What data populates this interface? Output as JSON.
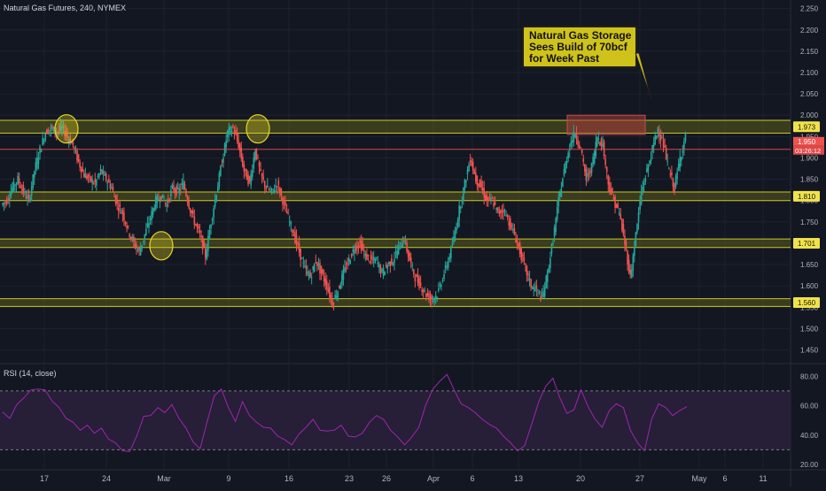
{
  "header": {
    "title": "Natural Gas Futures, 240, NYMEX"
  },
  "annotation": {
    "lines": [
      "Natural Gas Storage",
      "Sees Build of 70bcf",
      "for Week Past"
    ]
  },
  "colors": {
    "background": "#131722",
    "up": "#26a69a",
    "down": "#ef5350",
    "zone_fill": "#6b6b1a",
    "zone_line": "#c9c82a",
    "rsi_line": "#9c27b0",
    "rsi_band": "#2a1f3a",
    "last_price": "#ef5350"
  },
  "chart_data": [
    {
      "type": "candlestick",
      "title": "Natural Gas Futures, 240, NYMEX",
      "ylim": [
        1.42,
        2.27
      ],
      "y_ticks": [
        "2.250",
        "2.200",
        "2.150",
        "2.100",
        "2.050",
        "2.000",
        "1.950",
        "1.900",
        "1.850",
        "1.800",
        "1.750",
        "1.700",
        "1.650",
        "1.600",
        "1.550",
        "1.500",
        "1.450"
      ],
      "x_ticks": [
        "17",
        "24",
        "Mar",
        "9",
        "16",
        "23",
        "26",
        "Apr",
        "6",
        "13",
        "20",
        "27",
        "May",
        "6",
        "11"
      ],
      "grid": true,
      "ohlc_trend": [
        1.79,
        1.8,
        1.83,
        1.85,
        1.82,
        1.8,
        1.87,
        1.92,
        1.96,
        1.97,
        1.96,
        1.97,
        1.95,
        1.93,
        1.89,
        1.86,
        1.85,
        1.84,
        1.87,
        1.85,
        1.83,
        1.79,
        1.77,
        1.73,
        1.7,
        1.68,
        1.72,
        1.76,
        1.8,
        1.81,
        1.79,
        1.83,
        1.82,
        1.84,
        1.79,
        1.75,
        1.72,
        1.67,
        1.75,
        1.82,
        1.89,
        1.96,
        1.97,
        1.93,
        1.87,
        1.84,
        1.92,
        1.86,
        1.83,
        1.82,
        1.84,
        1.8,
        1.76,
        1.72,
        1.68,
        1.64,
        1.62,
        1.66,
        1.63,
        1.6,
        1.56,
        1.59,
        1.63,
        1.66,
        1.69,
        1.7,
        1.67,
        1.66,
        1.66,
        1.63,
        1.65,
        1.66,
        1.69,
        1.71,
        1.66,
        1.62,
        1.6,
        1.58,
        1.57,
        1.58,
        1.62,
        1.66,
        1.71,
        1.78,
        1.84,
        1.9,
        1.85,
        1.83,
        1.8,
        1.8,
        1.77,
        1.78,
        1.75,
        1.72,
        1.68,
        1.64,
        1.6,
        1.59,
        1.57,
        1.63,
        1.71,
        1.8,
        1.87,
        1.93,
        1.96,
        1.92,
        1.85,
        1.88,
        1.95,
        1.93,
        1.84,
        1.8,
        1.77,
        1.7,
        1.62,
        1.72,
        1.82,
        1.87,
        1.92,
        1.97,
        1.93,
        1.87,
        1.83,
        1.9,
        1.95
      ],
      "last_price": "1.947",
      "price_label": "1.950",
      "countdown": "03:26:12",
      "zones": [
        {
          "low": 1.958,
          "high": 1.988,
          "label": "1.973"
        },
        {
          "low": 1.8,
          "high": 1.82,
          "label": "1.810"
        },
        {
          "low": 1.69,
          "high": 1.71,
          "label": "1.701"
        },
        {
          "low": 1.552,
          "high": 1.57,
          "label": "1.560"
        }
      ],
      "marked_highs": [
        "17-19 Feb high",
        "10-11 Mar high"
      ],
      "marked_lows": [
        "27-28 Feb low"
      ],
      "resistance_box": {
        "low": 1.955,
        "high": 2.0
      }
    },
    {
      "type": "line",
      "title": "RSI (14, close)",
      "ylim": [
        17,
        88
      ],
      "y_ticks": [
        "80.00",
        "60.00",
        "40.00",
        "20.00"
      ],
      "bands": [
        30,
        70
      ],
      "series": [
        {
          "name": "RSI (14, close)",
          "values": [
            55,
            52,
            60,
            66,
            70,
            72,
            70,
            64,
            58,
            52,
            48,
            44,
            46,
            42,
            44,
            38,
            34,
            30,
            28,
            40,
            52,
            54,
            58,
            56,
            60,
            52,
            44,
            36,
            30,
            50,
            66,
            72,
            58,
            50,
            62,
            54,
            48,
            46,
            44,
            40,
            36,
            34,
            40,
            46,
            50,
            44,
            42,
            44,
            46,
            40,
            38,
            42,
            48,
            54,
            50,
            44,
            38,
            34,
            38,
            46,
            60,
            72,
            76,
            82,
            70,
            62,
            58,
            56,
            50,
            48,
            44,
            40,
            34,
            30,
            32,
            48,
            62,
            74,
            78,
            66,
            54,
            58,
            70,
            60,
            50,
            46,
            56,
            62,
            58,
            44,
            34,
            30,
            50,
            62,
            58,
            54,
            56,
            60
          ]
        }
      ]
    }
  ]
}
